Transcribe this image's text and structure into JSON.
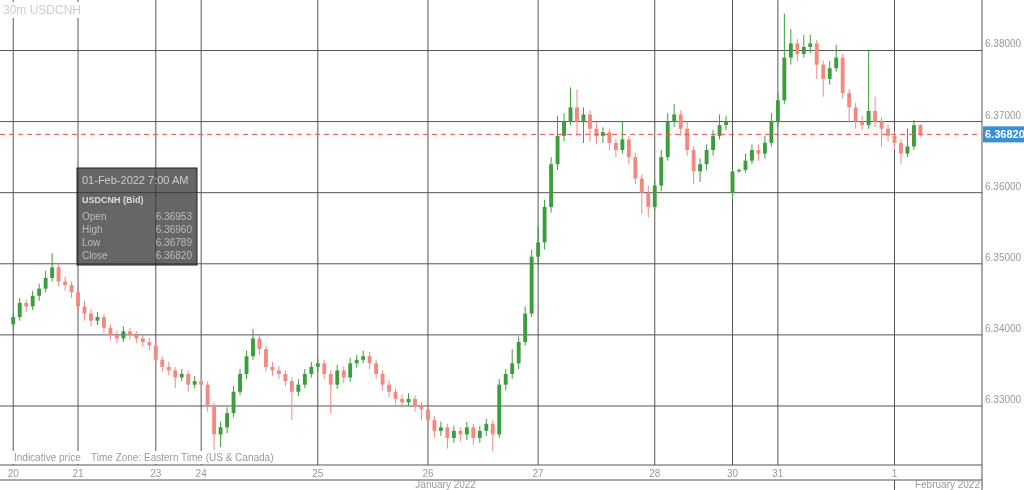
{
  "chart_data": {
    "type": "candlestick",
    "title": "30m USDCNH",
    "categories": [
      "20",
      null,
      null,
      null,
      null,
      null,
      null,
      null,
      null,
      null,
      "21",
      null,
      null,
      null,
      null,
      null,
      null,
      null,
      null,
      null,
      null,
      null,
      "23",
      null,
      null,
      null,
      null,
      null,
      null,
      "24",
      null,
      null,
      null,
      null,
      null,
      null,
      null,
      null,
      null,
      null,
      null,
      null,
      null,
      null,
      null,
      null,
      null,
      "25",
      null,
      null,
      null,
      null,
      null,
      null,
      null,
      null,
      null,
      null,
      null,
      null,
      null,
      null,
      null,
      null,
      "26",
      null,
      null,
      null,
      null,
      null,
      null,
      null,
      null,
      null,
      null,
      null,
      null,
      null,
      null,
      null,
      null,
      "27",
      null,
      null,
      null,
      null,
      null,
      null,
      null,
      null,
      null,
      null,
      null,
      null,
      null,
      null,
      null,
      null,
      null,
      "28",
      null,
      null,
      null,
      null,
      null,
      null,
      null,
      null,
      null,
      null,
      null,
      "30",
      null,
      null,
      null,
      null,
      null,
      null,
      "31",
      null,
      null,
      null,
      null,
      null,
      null,
      null,
      null,
      null,
      null,
      null,
      null,
      null,
      null,
      null,
      null,
      null,
      "1",
      null,
      null,
      null,
      null,
      null,
      null,
      null,
      null,
      null,
      null,
      null,
      null,
      null
    ],
    "ohlc": [
      [
        6.3415,
        6.343,
        6.3408,
        6.3425
      ],
      [
        6.3425,
        6.3452,
        6.342,
        6.3445
      ],
      [
        6.3445,
        6.345,
        6.3432,
        6.344
      ],
      [
        6.344,
        6.3462,
        6.3435,
        6.3455
      ],
      [
        6.3455,
        6.3472,
        6.3448,
        6.3465
      ],
      [
        6.3465,
        6.349,
        6.346,
        6.348
      ],
      [
        6.348,
        6.3515,
        6.3475,
        6.3495
      ],
      [
        6.3495,
        6.35,
        6.3468,
        6.3475
      ],
      [
        6.3475,
        6.3482,
        6.3462,
        6.347
      ],
      [
        6.347,
        6.3475,
        6.3452,
        6.346
      ],
      [
        6.346,
        6.3465,
        6.3432,
        6.344
      ],
      [
        6.344,
        6.3448,
        6.342,
        6.343
      ],
      [
        6.343,
        6.3436,
        6.3412,
        6.342
      ],
      [
        6.342,
        6.3432,
        6.3414,
        6.3425
      ],
      [
        6.3425,
        6.343,
        6.3402,
        6.341
      ],
      [
        6.341,
        6.3415,
        6.3392,
        6.34
      ],
      [
        6.34,
        6.3406,
        6.3388,
        6.3395
      ],
      [
        6.3395,
        6.3412,
        6.339,
        6.3405
      ],
      [
        6.3405,
        6.341,
        6.3393,
        6.34
      ],
      [
        6.34,
        6.3405,
        6.3388,
        6.3395
      ],
      [
        6.3395,
        6.34,
        6.3383,
        6.339
      ],
      [
        6.339,
        6.3396,
        6.3378,
        6.3385
      ],
      [
        6.3385,
        6.339,
        6.3358,
        6.3365
      ],
      [
        6.3365,
        6.337,
        6.3348,
        6.3355
      ],
      [
        6.3355,
        6.3362,
        6.3343,
        6.335
      ],
      [
        6.335,
        6.3355,
        6.3325,
        6.334
      ],
      [
        6.334,
        6.3352,
        6.3335,
        6.3345
      ],
      [
        6.3345,
        6.335,
        6.332,
        6.333
      ],
      [
        6.333,
        6.3342,
        6.3325,
        6.3335
      ],
      [
        6.3335,
        6.334,
        6.3322,
        6.333
      ],
      [
        6.333,
        6.3335,
        6.3292,
        6.33
      ],
      [
        6.33,
        6.3305,
        6.3238,
        6.326
      ],
      [
        6.326,
        6.3278,
        6.3242,
        6.327
      ],
      [
        6.327,
        6.3298,
        6.3262,
        6.329
      ],
      [
        6.329,
        6.3328,
        6.3284,
        6.332
      ],
      [
        6.332,
        6.3352,
        6.3315,
        6.3345
      ],
      [
        6.3345,
        6.3378,
        6.3338,
        6.337
      ],
      [
        6.337,
        6.3408,
        6.3365,
        6.3395
      ],
      [
        6.3395,
        6.34,
        6.3372,
        6.338
      ],
      [
        6.338,
        6.3385,
        6.3348,
        6.3355
      ],
      [
        6.3355,
        6.3362,
        6.3342,
        6.335
      ],
      [
        6.335,
        6.3356,
        6.3338,
        6.3345
      ],
      [
        6.3345,
        6.335,
        6.3328,
        6.3335
      ],
      [
        6.3335,
        6.334,
        6.328,
        6.332
      ],
      [
        6.332,
        6.3338,
        6.3314,
        6.333
      ],
      [
        6.333,
        6.3352,
        6.3325,
        6.3345
      ],
      [
        6.3345,
        6.3362,
        6.334,
        6.3355
      ],
      [
        6.3355,
        6.3366,
        6.3348,
        6.336
      ],
      [
        6.336,
        6.3365,
        6.3338,
        6.3345
      ],
      [
        6.3345,
        6.335,
        6.329,
        6.333
      ],
      [
        6.333,
        6.3358,
        6.3324,
        6.335
      ],
      [
        6.335,
        6.3356,
        6.3332,
        6.334
      ],
      [
        6.334,
        6.3368,
        6.3334,
        6.336
      ],
      [
        6.336,
        6.3372,
        6.3354,
        6.3365
      ],
      [
        6.3365,
        6.3378,
        6.336,
        6.337
      ],
      [
        6.337,
        6.3376,
        6.3352,
        6.336
      ],
      [
        6.336,
        6.3365,
        6.3338,
        6.3345
      ],
      [
        6.3345,
        6.335,
        6.3322,
        6.333
      ],
      [
        6.333,
        6.3336,
        6.3312,
        6.332
      ],
      [
        6.332,
        6.3325,
        6.3302,
        6.331
      ],
      [
        6.331,
        6.3316,
        6.3298,
        6.3305
      ],
      [
        6.3305,
        6.3318,
        6.33,
        6.331
      ],
      [
        6.331,
        6.3315,
        6.3292,
        6.33
      ],
      [
        6.33,
        6.3306,
        6.328,
        6.3295
      ],
      [
        6.3295,
        6.33,
        6.3258,
        6.328
      ],
      [
        6.328,
        6.3286,
        6.3256,
        6.3265
      ],
      [
        6.3265,
        6.3278,
        6.3258,
        6.327
      ],
      [
        6.327,
        6.3275,
        6.324,
        6.3255
      ],
      [
        6.3255,
        6.3272,
        6.3248,
        6.3265
      ],
      [
        6.3265,
        6.327,
        6.325,
        6.326
      ],
      [
        6.326,
        6.3278,
        6.3252,
        6.327
      ],
      [
        6.327,
        6.3275,
        6.3246,
        6.3255
      ],
      [
        6.3255,
        6.3272,
        6.3248,
        6.3265
      ],
      [
        6.3265,
        6.3282,
        6.3258,
        6.3275
      ],
      [
        6.3275,
        6.328,
        6.3236,
        6.326
      ],
      [
        6.326,
        6.3338,
        6.3255,
        6.333
      ],
      [
        6.333,
        6.3352,
        6.3322,
        6.3345
      ],
      [
        6.3345,
        6.338,
        6.3338,
        6.336
      ],
      [
        6.336,
        6.3398,
        6.3352,
        6.339
      ],
      [
        6.339,
        6.344,
        6.3385,
        6.343
      ],
      [
        6.343,
        6.352,
        6.3425,
        6.351
      ],
      [
        6.351,
        6.3552,
        6.3502,
        6.353
      ],
      [
        6.353,
        6.359,
        6.352,
        6.358
      ],
      [
        6.358,
        6.365,
        6.3572,
        6.364
      ],
      [
        6.364,
        6.3708,
        6.3632,
        6.368
      ],
      [
        6.368,
        6.3712,
        6.3672,
        6.37
      ],
      [
        6.37,
        6.3748,
        6.3695,
        6.372
      ],
      [
        6.372,
        6.3745,
        6.368,
        6.37
      ],
      [
        6.37,
        6.372,
        6.367,
        6.371
      ],
      [
        6.371,
        6.3716,
        6.3672,
        6.369
      ],
      [
        6.369,
        6.37,
        6.3668,
        6.368
      ],
      [
        6.368,
        6.3692,
        6.367,
        6.3685
      ],
      [
        6.3685,
        6.369,
        6.366,
        6.367
      ],
      [
        6.367,
        6.3676,
        6.365,
        6.366
      ],
      [
        6.366,
        6.37,
        6.3655,
        6.3675
      ],
      [
        6.3675,
        6.368,
        6.364,
        6.365
      ],
      [
        6.365,
        6.3656,
        6.3612,
        6.362
      ],
      [
        6.362,
        6.3626,
        6.357,
        6.36
      ],
      [
        6.36,
        6.361,
        6.3565,
        6.358
      ],
      [
        6.358,
        6.3618,
        6.3575,
        6.361
      ],
      [
        6.361,
        6.366,
        6.3602,
        6.365
      ],
      [
        6.365,
        6.3712,
        6.3645,
        6.37
      ],
      [
        6.37,
        6.3725,
        6.3692,
        6.371
      ],
      [
        6.371,
        6.3716,
        6.368,
        6.369
      ],
      [
        6.369,
        6.37,
        6.3652,
        6.366
      ],
      [
        6.366,
        6.3665,
        6.3612,
        6.363
      ],
      [
        6.363,
        6.3648,
        6.3615,
        6.364
      ],
      [
        6.364,
        6.3668,
        6.3632,
        6.366
      ],
      [
        6.366,
        6.3688,
        6.3652,
        6.368
      ],
      [
        6.368,
        6.371,
        6.3675,
        6.3695
      ],
      [
        6.3695,
        6.3708,
        6.3688,
        6.37
      ],
      [
        6.36,
        6.3632,
        6.359,
        6.363
      ],
      [
        6.363,
        6.3634,
        6.3628,
        6.3632
      ],
      [
        6.3632,
        6.3655,
        6.3628,
        6.3645
      ],
      [
        6.3645,
        6.3668,
        6.364,
        6.366
      ],
      [
        6.366,
        6.3668,
        6.3645,
        6.3655
      ],
      [
        6.3655,
        6.368,
        6.3648,
        6.367
      ],
      [
        6.367,
        6.3712,
        6.3665,
        6.37
      ],
      [
        6.37,
        6.374,
        6.3692,
        6.373
      ],
      [
        6.373,
        6.3852,
        6.3725,
        6.379
      ],
      [
        6.379,
        6.383,
        6.378,
        6.381
      ],
      [
        6.381,
        6.3816,
        6.3785,
        6.3795
      ],
      [
        6.3795,
        6.3822,
        6.379,
        6.3805
      ],
      [
        6.3805,
        6.3822,
        6.3796,
        6.381
      ],
      [
        6.381,
        6.3815,
        6.376,
        6.378
      ],
      [
        6.378,
        6.3786,
        6.3735,
        6.376
      ],
      [
        6.376,
        6.3785,
        6.3752,
        6.3775
      ],
      [
        6.3775,
        6.3808,
        6.377,
        6.379
      ],
      [
        6.379,
        6.3795,
        6.3732,
        6.374
      ],
      [
        6.374,
        6.3746,
        6.37,
        6.372
      ],
      [
        6.372,
        6.3726,
        6.369,
        6.37
      ],
      [
        6.37,
        6.3708,
        6.3688,
        6.3695
      ],
      [
        6.3695,
        6.38,
        6.369,
        6.3715
      ],
      [
        6.3715,
        6.3735,
        6.3692,
        6.37
      ],
      [
        6.37,
        6.3706,
        6.3665,
        6.369
      ],
      [
        6.369,
        6.3696,
        6.3672,
        6.368
      ],
      [
        6.368,
        6.3686,
        6.366,
        6.367
      ],
      [
        6.367,
        6.3675,
        6.364,
        6.3655
      ],
      [
        6.3655,
        6.369,
        6.365,
        6.3665
      ],
      [
        6.3665,
        6.3702,
        6.366,
        6.3695
      ],
      [
        6.36953,
        6.3696,
        6.36789,
        6.3682
      ],
      null,
      null,
      null,
      null,
      null,
      null,
      null,
      null,
      null
    ],
    "ylim": [
      6.3217,
      6.3871
    ],
    "yticks": [
      {
        "value": 6.33,
        "label": "6.33000"
      },
      {
        "value": 6.34,
        "label": "6.34000"
      },
      {
        "value": 6.35,
        "label": "6.35000"
      },
      {
        "value": 6.36,
        "label": "6.36000"
      },
      {
        "value": 6.37,
        "label": "6.37000"
      },
      {
        "value": 6.38,
        "label": "6.38000"
      }
    ],
    "grid": true,
    "ref_lines": [
      {
        "axis": "y",
        "value": 6.3682,
        "label": "6.36820",
        "color": "#f05050",
        "line_style": "dashed"
      }
    ],
    "annotations": [
      "Indicative price",
      "Time Zone: Eastern Time (US & Canada)",
      "January 2022",
      "February 2022",
      "01-Feb-2022 7:00 AM",
      "USDCNH (Bid)",
      "Open",
      "6.36953",
      "High",
      "6.36960",
      "Low",
      "6.36789",
      "Close",
      "6.36820"
    ]
  }
}
